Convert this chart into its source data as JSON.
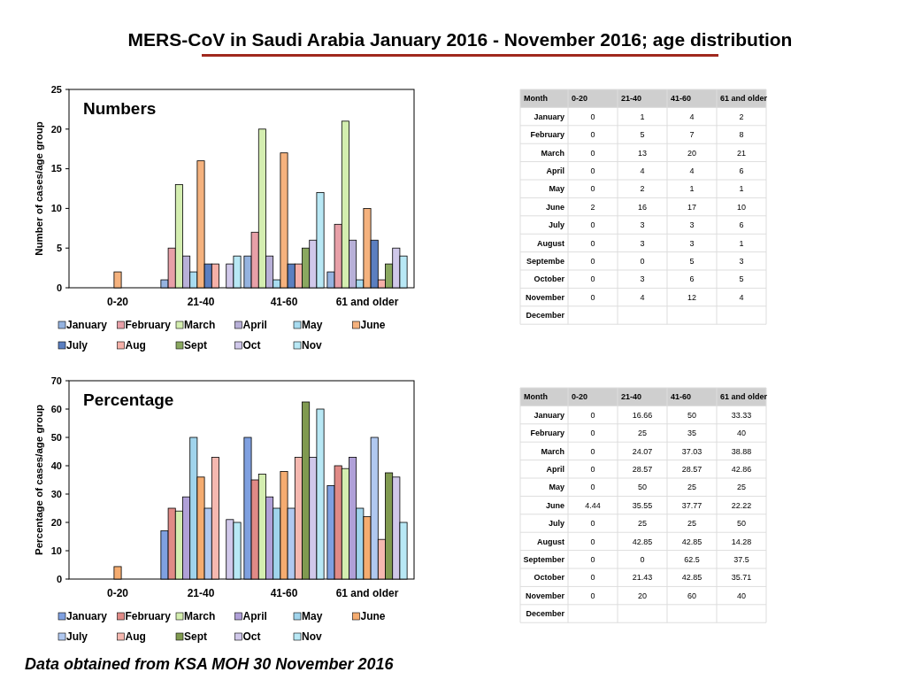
{
  "chart_data": [
    {
      "type": "bar",
      "title": "MERS-CoV in Saudi Arabia January 2016 - November 2016; age distribution",
      "subtitle": "Numbers",
      "ylabel": "Number of cases/age group",
      "categories": [
        "0-20",
        "21-40",
        "41-60",
        "61 and older"
      ],
      "ylim": [
        0,
        25
      ],
      "yticks": [
        0,
        5,
        10,
        15,
        20,
        25
      ],
      "legend": "bottom",
      "series": [
        {
          "name": "January",
          "color": "#95b3e0",
          "values": [
            0,
            1,
            4,
            2
          ]
        },
        {
          "name": "February",
          "color": "#e8a0a8",
          "values": [
            0,
            5,
            7,
            8
          ]
        },
        {
          "name": "March",
          "color": "#d4eeb0",
          "values": [
            0,
            13,
            20,
            21
          ]
        },
        {
          "name": "April",
          "color": "#b8b0d8",
          "values": [
            0,
            4,
            4,
            6
          ]
        },
        {
          "name": "May",
          "color": "#a8dcf0",
          "values": [
            0,
            2,
            1,
            1
          ]
        },
        {
          "name": "June",
          "color": "#f5b27e",
          "values": [
            2,
            16,
            17,
            10
          ]
        },
        {
          "name": "July",
          "color": "#5b7fc0",
          "values": [
            0,
            3,
            3,
            6
          ]
        },
        {
          "name": "Aug",
          "color": "#f5b0a8",
          "values": [
            0,
            3,
            3,
            1
          ]
        },
        {
          "name": "Sept",
          "color": "#8aa860",
          "values": [
            0,
            0,
            5,
            3
          ]
        },
        {
          "name": "Oct",
          "color": "#d0c8ea",
          "values": [
            0,
            3,
            6,
            5
          ]
        },
        {
          "name": "Nov",
          "color": "#b8e8f5",
          "values": [
            0,
            4,
            12,
            4
          ]
        }
      ]
    },
    {
      "type": "heatmap",
      "data_labels": true,
      "ylabel": "Month",
      "categories": [
        "0-20",
        "21-40",
        "41-60",
        "61 and older"
      ],
      "y_categories": [
        "January",
        "February",
        "March",
        "April",
        "May",
        "June",
        "July",
        "August",
        "Septembe",
        "October",
        "November",
        "December"
      ],
      "cells": [
        [
          0,
          1,
          4,
          2
        ],
        [
          0,
          5,
          7,
          8
        ],
        [
          0,
          13,
          20,
          21
        ],
        [
          0,
          4,
          4,
          6
        ],
        [
          0,
          2,
          1,
          1
        ],
        [
          2,
          16,
          17,
          10
        ],
        [
          0,
          3,
          3,
          6
        ],
        [
          0,
          3,
          3,
          1
        ],
        [
          0,
          0,
          5,
          3
        ],
        [
          0,
          3,
          6,
          5
        ],
        [
          0,
          4,
          12,
          4
        ],
        [
          null,
          null,
          null,
          null
        ]
      ]
    },
    {
      "type": "bar",
      "subtitle": "Percentage",
      "ylabel": "Percentage of cases/age group",
      "categories": [
        "0-20",
        "21-40",
        "41-60",
        "61 and older"
      ],
      "ylim": [
        0,
        70
      ],
      "yticks": [
        0,
        10,
        20,
        30,
        40,
        50,
        60,
        70
      ],
      "legend": "bottom",
      "series": [
        {
          "name": "January",
          "color": "#7fa0e0",
          "values": [
            0,
            17,
            50,
            33
          ]
        },
        {
          "name": "February",
          "color": "#e08a86",
          "values": [
            0,
            25,
            35,
            40
          ]
        },
        {
          "name": "March",
          "color": "#d4eeb0",
          "values": [
            0,
            24,
            37,
            39
          ]
        },
        {
          "name": "April",
          "color": "#b0a0d8",
          "values": [
            0,
            29,
            29,
            43
          ]
        },
        {
          "name": "May",
          "color": "#a0d4ec",
          "values": [
            0,
            50,
            25,
            25
          ]
        },
        {
          "name": "June",
          "color": "#f5ac70",
          "values": [
            4.4,
            36,
            38,
            22
          ]
        },
        {
          "name": "July",
          "color": "#b0c8f0",
          "values": [
            0,
            25,
            25,
            50
          ]
        },
        {
          "name": "Aug",
          "color": "#f5b8b0",
          "values": [
            0,
            43,
            43,
            14
          ]
        },
        {
          "name": "Sept",
          "color": "#809a50",
          "values": [
            0,
            0,
            62.5,
            37.5
          ]
        },
        {
          "name": "Oct",
          "color": "#d0c8ea",
          "values": [
            0,
            21,
            43,
            36
          ]
        },
        {
          "name": "Nov",
          "color": "#b8e8f5",
          "values": [
            0,
            20,
            60,
            20
          ]
        }
      ],
      "annotations": [
        "Data obtained from KSA MOH 30 November 2016"
      ]
    },
    {
      "type": "heatmap",
      "data_labels": true,
      "ylabel": "Month",
      "categories": [
        "0-20",
        "21-40",
        "41-60",
        "61 and older"
      ],
      "y_categories": [
        "January",
        "February",
        "March",
        "April",
        "May",
        "June",
        "July",
        "August",
        "September",
        "October",
        "November",
        "December"
      ],
      "cells": [
        [
          0,
          16.66,
          50,
          33.33
        ],
        [
          0,
          25,
          35,
          40
        ],
        [
          0,
          24.07,
          37.03,
          38.88
        ],
        [
          0,
          28.57,
          28.57,
          42.86
        ],
        [
          0,
          50,
          25,
          25
        ],
        [
          4.44,
          35.55,
          37.77,
          22.22
        ],
        [
          0,
          25,
          25,
          50
        ],
        [
          0,
          42.85,
          42.85,
          14.28
        ],
        [
          0,
          0,
          62.5,
          37.5
        ],
        [
          0,
          21.43,
          42.85,
          35.71
        ],
        [
          0,
          20,
          60,
          40
        ],
        [
          null,
          null,
          null,
          null
        ]
      ]
    }
  ]
}
